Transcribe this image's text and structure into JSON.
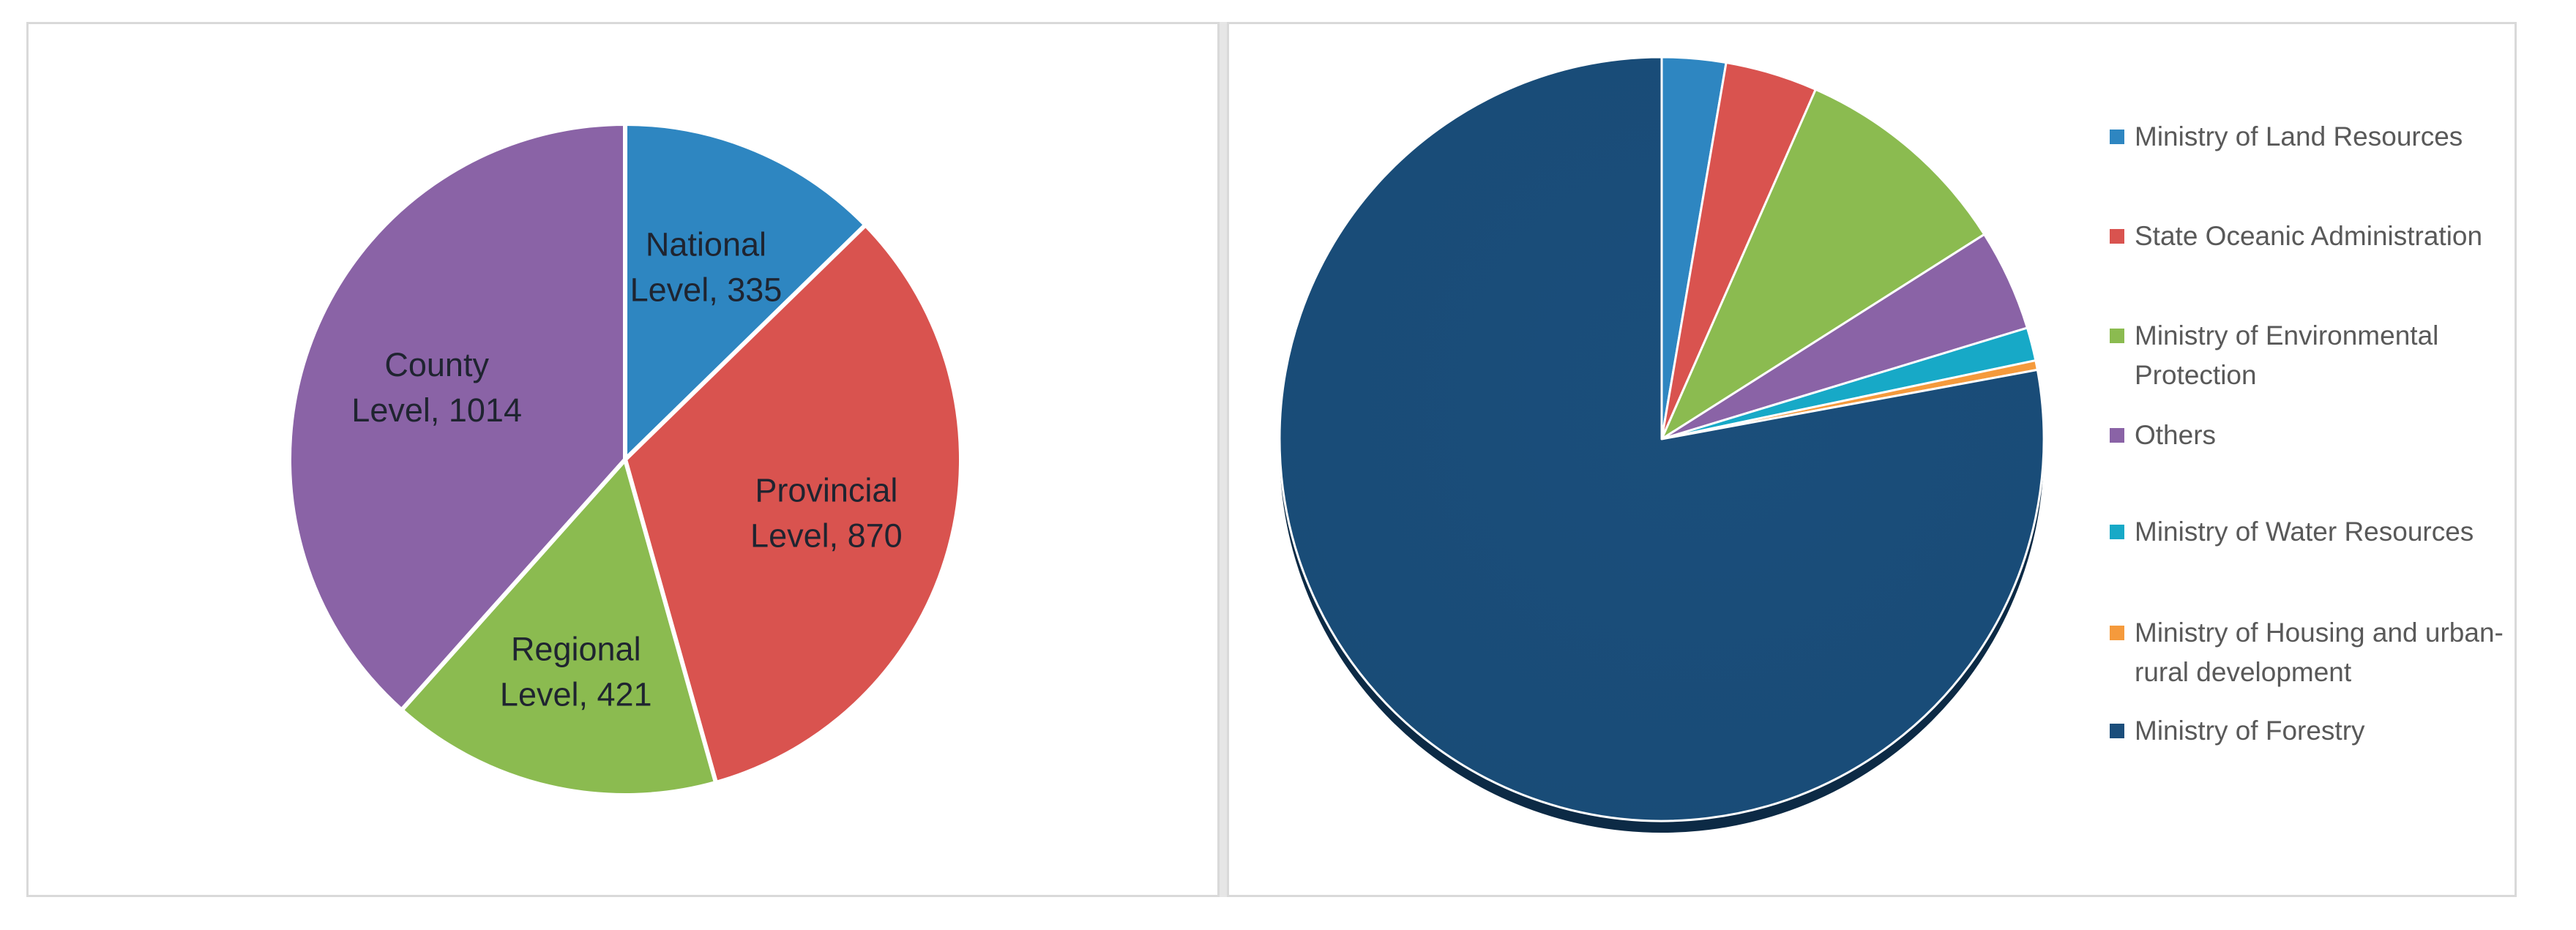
{
  "chart_data": [
    {
      "type": "pie",
      "title": "",
      "slices": [
        {
          "label": "National\nLevel, 335",
          "value": 335,
          "color": "#2e86c1"
        },
        {
          "label": "Provincial\nLevel, 870",
          "value": 870,
          "color": "#d9534f"
        },
        {
          "label": "Regional\nLevel, 421",
          "value": 421,
          "color": "#8bbb50"
        },
        {
          "label": "County\nLevel, 1014",
          "value": 1014,
          "color": "#8a63a6"
        }
      ],
      "legend": "none",
      "data_labels": "inside"
    },
    {
      "type": "pie",
      "title": "",
      "slices": [
        {
          "name": "Ministry of Land Resources",
          "value": 2.7,
          "color": "#2e86c1"
        },
        {
          "name": "State Oceanic Administration",
          "value": 3.9,
          "color": "#d9534f"
        },
        {
          "name": "Ministry of Environmental Protection",
          "value": 9.4,
          "color": "#8bbb50"
        },
        {
          "name": "Others",
          "value": 4.3,
          "color": "#8a63a6"
        },
        {
          "name": "Ministry of Water Resources",
          "value": 1.4,
          "color": "#17a9c7"
        },
        {
          "name": "Ministry of Housing and urban-rural development",
          "value": 0.4,
          "color": "#f59a3c"
        },
        {
          "name": "Ministry of Forestry",
          "value": 77.9,
          "color": "#1b4e7b"
        }
      ],
      "legend": "right",
      "data_labels": "none"
    }
  ]
}
